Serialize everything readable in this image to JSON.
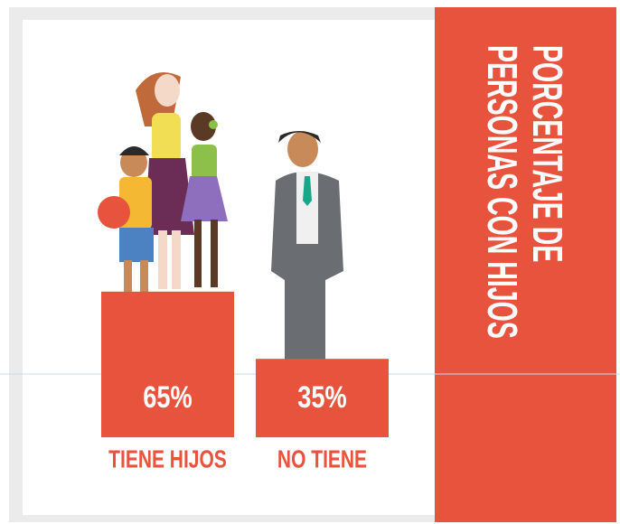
{
  "chart_data": {
    "type": "bar",
    "title": "PORCENTAJE DE PERSONAS CON HIJOS",
    "categories": [
      "TIENE HIJOS",
      "NO TIENE"
    ],
    "values": [
      65,
      35
    ],
    "value_labels": [
      "65%",
      "35%"
    ],
    "color": "#e8533e"
  }
}
